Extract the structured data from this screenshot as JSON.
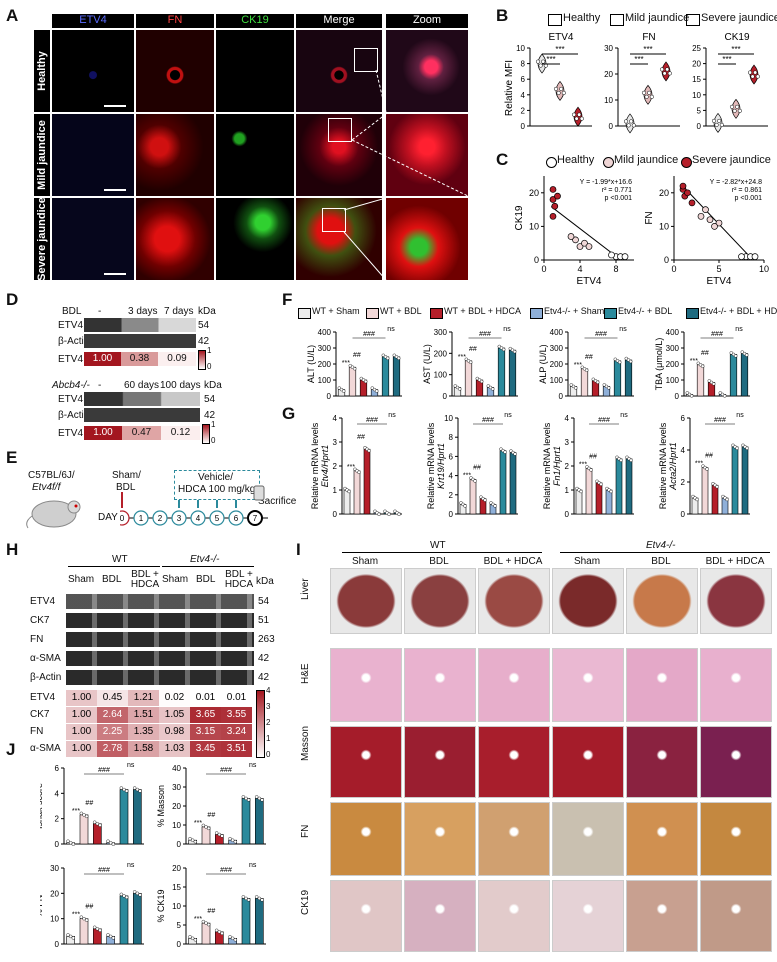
{
  "panels": {
    "A": "A",
    "B": "B",
    "C": "C",
    "D": "D",
    "E": "E",
    "F": "F",
    "G": "G",
    "H": "H",
    "I": "I",
    "J": "J"
  },
  "A": {
    "columns": [
      "ETV4",
      "FN",
      "CK19",
      "Merge",
      "Zoom"
    ],
    "rows": [
      "Healthy",
      "Mild jaundice",
      "Severe jaundice"
    ]
  },
  "B": {
    "legend": [
      "Healthy",
      "Mild jaundice",
      "Severe jaundice"
    ],
    "legend_colors": [
      "#e8e8e8",
      "#e3b9b9",
      "#b51f2a"
    ],
    "ylabel": "Relative MFI",
    "sig": "***"
  },
  "C": {
    "legend": [
      "Healthy",
      "Mild jaundice",
      "Severe jaundice"
    ]
  },
  "D": {
    "bdl_header": [
      "BDL",
      "-",
      "3 days",
      "7 days",
      "kDa"
    ],
    "bdl_rows": [
      {
        "name": "ETV4",
        "kda": "54"
      },
      {
        "name": "β-Actin",
        "kda": "42"
      }
    ],
    "bdl_quant": {
      "name": "ETV4",
      "values": [
        "1.00",
        "0.38",
        "0.09"
      ],
      "sig": [
        "",
        "**",
        "***"
      ]
    },
    "abcb4_header": [
      "Abcb4-/-",
      "-",
      "60 days",
      "100 days",
      "kDa"
    ],
    "abcb4_rows": [
      {
        "name": "ETV4",
        "kda": "54"
      },
      {
        "name": "β-Actin",
        "kda": "42"
      }
    ],
    "abcb4_quant": {
      "name": "ETV4",
      "values": [
        "1.00",
        "0.47",
        "0.12"
      ],
      "sig": [
        "",
        "**",
        "***"
      ]
    },
    "scale": [
      "1",
      "0"
    ]
  },
  "E": {
    "mouse": "C57BL/6J/",
    "mouse2": "Etv4f/f",
    "sham": "Sham/",
    "bdl": "BDL",
    "vehicle": "Vehicle/",
    "hdca": "HDCA 100 mg/kg",
    "day": "DAY",
    "days": [
      "0",
      "1",
      "2",
      "3",
      "4",
      "5",
      "6",
      "7"
    ],
    "sacrifice": "Sacrifice"
  },
  "F": {
    "legend": [
      "WT + Sham",
      "WT + BDL",
      "WT + BDL + HDCA",
      "Etv4-/- + Sham",
      "Etv4-/- + BDL",
      "Etv4-/- + BDL + HDCA"
    ],
    "legend_colors": [
      "#ededed",
      "#f2d8d8",
      "#b51f2a",
      "#8fb0d9",
      "#2b8a9c",
      "#1f6b80"
    ],
    "sig_main": "***",
    "sig_hash": "##",
    "sig_hash3": "###",
    "ns": "ns"
  },
  "G": {
    "sig_main": "***",
    "sig_hash": "##",
    "sig_hash3": "###",
    "ns": "ns"
  },
  "H": {
    "groups": [
      "WT",
      "Etv4-/-"
    ],
    "lanes": [
      "Sham",
      "BDL",
      "BDL + HDCA",
      "Sham",
      "BDL",
      "BDL + HDCA"
    ],
    "kda_label": "kDa",
    "blots": [
      {
        "name": "ETV4",
        "kda": "54"
      },
      {
        "name": "CK7",
        "kda": "51"
      },
      {
        "name": "FN",
        "kda": "263"
      },
      {
        "name": "α-SMA",
        "kda": "42"
      },
      {
        "name": "β-Actin",
        "kda": "42"
      }
    ],
    "quant": [
      {
        "name": "ETV4",
        "values": [
          "1.00",
          "0.45",
          "1.21",
          "0.02",
          "0.01",
          "0.01"
        ]
      },
      {
        "name": "CK7",
        "values": [
          "1.00",
          "2.64",
          "1.51",
          "1.05",
          "3.65",
          "3.55"
        ]
      },
      {
        "name": "FN",
        "values": [
          "1.00",
          "2.25",
          "1.35",
          "0.98",
          "3.15",
          "3.24"
        ]
      },
      {
        "name": "α-SMA",
        "values": [
          "1.00",
          "2.78",
          "1.58",
          "1.03",
          "3.45",
          "3.51"
        ]
      }
    ],
    "scale": [
      "4",
      "3",
      "2",
      "1",
      "0"
    ]
  },
  "I": {
    "groups": [
      "WT",
      "Etv4-/-"
    ],
    "columns": [
      "Sham",
      "BDL",
      "BDL + HDCA",
      "Sham",
      "BDL",
      "BDL + HDCA"
    ],
    "rows": [
      "Liver",
      "H&E",
      "Masson",
      "FN",
      "CK19"
    ]
  },
  "J": {
    "sig_main": "***",
    "sig_hash": "##",
    "sig_hash3": "###",
    "ns": "ns"
  },
  "chart_data": [
    {
      "panel": "B",
      "type": "scatter",
      "title": "ETV4",
      "ylabel": "Relative MFI",
      "categories": [
        "Healthy",
        "Mild jaundice",
        "Severe jaundice"
      ],
      "ylim": [
        0,
        10
      ],
      "ticks": [
        0,
        2,
        4,
        6,
        8,
        10
      ],
      "values": [
        8.0,
        4.5,
        1.2
      ]
    },
    {
      "panel": "B",
      "type": "scatter",
      "title": "FN",
      "categories": [
        "Healthy",
        "Mild jaundice",
        "Severe jaundice"
      ],
      "ylim": [
        0,
        30
      ],
      "ticks": [
        0,
        10,
        20,
        30
      ],
      "values": [
        1.0,
        12.0,
        21.0
      ]
    },
    {
      "panel": "B",
      "type": "scatter",
      "title": "CK19",
      "categories": [
        "Healthy",
        "Mild jaundice",
        "Severe jaundice"
      ],
      "ylim": [
        0,
        25
      ],
      "ticks": [
        0,
        5,
        10,
        15,
        20,
        25
      ],
      "values": [
        1.0,
        5.5,
        16.5
      ]
    },
    {
      "panel": "C",
      "type": "scatter",
      "xlabel": "ETV4",
      "ylabel": "CK19",
      "xlim": [
        0,
        10
      ],
      "ylim": [
        0,
        25
      ],
      "xticks": [
        0,
        4,
        8
      ],
      "yticks": [
        0,
        10,
        20
      ],
      "annotation": [
        "Y = -1.99*x+16.6",
        "r² = 0.771",
        "p <0.001"
      ],
      "points": [
        [
          1,
          18
        ],
        [
          1.2,
          16
        ],
        [
          1,
          21
        ],
        [
          1,
          13
        ],
        [
          1.5,
          19
        ],
        [
          4,
          4
        ],
        [
          4.5,
          5
        ],
        [
          3.5,
          6
        ],
        [
          5,
          4
        ],
        [
          3,
          7
        ],
        [
          8,
          1
        ],
        [
          8.5,
          1
        ],
        [
          9,
          1
        ],
        [
          7.5,
          1.5
        ]
      ],
      "line": [
        [
          0.8,
          15.9
        ],
        [
          8.4,
          0.3
        ]
      ]
    },
    {
      "panel": "C",
      "type": "scatter",
      "xlabel": "ETV4",
      "ylabel": "FN",
      "xlim": [
        0,
        10
      ],
      "ylim": [
        0,
        25
      ],
      "xticks": [
        0,
        5,
        10
      ],
      "yticks": [
        0,
        10,
        20
      ],
      "annotation": [
        "Y = -2.82*x+24.8",
        "r² = 0.861",
        "p <0.001"
      ],
      "points": [
        [
          1,
          21
        ],
        [
          1.2,
          19
        ],
        [
          1.5,
          20
        ],
        [
          1,
          22
        ],
        [
          2,
          17
        ],
        [
          4,
          12
        ],
        [
          5,
          11
        ],
        [
          3.5,
          15
        ],
        [
          4.5,
          10
        ],
        [
          3,
          13
        ],
        [
          8,
          1
        ],
        [
          8.5,
          1
        ],
        [
          9,
          1
        ],
        [
          7.5,
          1
        ]
      ],
      "line": [
        [
          0.8,
          22.5
        ],
        [
          8.6,
          0.5
        ]
      ]
    },
    {
      "panel": "F",
      "type": "bar",
      "ylabel": "ALT (U/L)",
      "ylim": [
        0,
        400
      ],
      "ticks": [
        0,
        100,
        200,
        300,
        400
      ],
      "values": [
        40,
        180,
        100,
        40,
        245,
        245
      ]
    },
    {
      "panel": "F",
      "type": "bar",
      "ylabel": "AST (U/L)",
      "ylim": [
        0,
        300
      ],
      "ticks": [
        0,
        100,
        200,
        300
      ],
      "values": [
        40,
        165,
        75,
        40,
        225,
        215
      ]
    },
    {
      "panel": "F",
      "type": "bar",
      "ylabel": "ALP (U/L)",
      "ylim": [
        0,
        400
      ],
      "ticks": [
        0,
        100,
        200,
        300,
        400
      ],
      "values": [
        60,
        170,
        95,
        60,
        220,
        225
      ]
    },
    {
      "panel": "F",
      "type": "bar",
      "ylabel": "TBA (μmol/L)",
      "ylim": [
        0,
        400
      ],
      "ticks": [
        0,
        100,
        200,
        300,
        400
      ],
      "values": [
        10,
        195,
        85,
        10,
        260,
        265
      ]
    },
    {
      "panel": "G",
      "type": "bar",
      "ylabel": "Relative mRNA levels Etv4/Hprt1",
      "ylim": [
        0,
        4
      ],
      "ticks": [
        0,
        1,
        2,
        3,
        4
      ],
      "values": [
        1.0,
        1.8,
        2.7,
        0.05,
        0.05,
        0.05
      ]
    },
    {
      "panel": "G",
      "type": "bar",
      "ylabel": "Relative mRNA levels Krt19/Hprt1",
      "ylim": [
        0,
        10
      ],
      "ticks": [
        0,
        2,
        4,
        6,
        8,
        10
      ],
      "values": [
        1.0,
        3.6,
        1.6,
        1.0,
        6.6,
        6.4
      ]
    },
    {
      "panel": "G",
      "type": "bar",
      "ylabel": "Relative mRNA levels Fn1/Hprt1",
      "ylim": [
        0,
        4
      ],
      "ticks": [
        0,
        1,
        2,
        3,
        4
      ],
      "values": [
        1.0,
        1.9,
        1.3,
        1.0,
        2.3,
        2.3
      ]
    },
    {
      "panel": "G",
      "type": "bar",
      "ylabel": "Relative mRNA levels Acta2/Hprt1",
      "ylim": [
        0,
        6
      ],
      "ticks": [
        0,
        2,
        4,
        6
      ],
      "values": [
        1.0,
        2.9,
        1.8,
        1.0,
        4.2,
        4.2
      ]
    },
    {
      "panel": "J",
      "type": "bar",
      "ylabel": "Ishak score",
      "ylim": [
        0,
        6
      ],
      "ticks": [
        0,
        2,
        4,
        6
      ],
      "values": [
        0.1,
        2.3,
        1.6,
        0.1,
        4.3,
        4.3
      ]
    },
    {
      "panel": "J",
      "type": "bar",
      "ylabel": "% Masson",
      "ylim": [
        0,
        40
      ],
      "ticks": [
        0,
        10,
        20,
        30,
        40
      ],
      "values": [
        2,
        9,
        5,
        2,
        24,
        24
      ]
    },
    {
      "panel": "J",
      "type": "bar",
      "ylabel": "% FN",
      "ylim": [
        0,
        30
      ],
      "ticks": [
        0,
        10,
        20,
        30
      ],
      "values": [
        3,
        10,
        6,
        3,
        19,
        20
      ]
    },
    {
      "panel": "J",
      "type": "bar",
      "ylabel": "% CK19",
      "ylim": [
        0,
        20
      ],
      "ticks": [
        0,
        5,
        10,
        15,
        20
      ],
      "values": [
        1.5,
        5.5,
        3.2,
        1.5,
        12,
        12
      ]
    }
  ]
}
